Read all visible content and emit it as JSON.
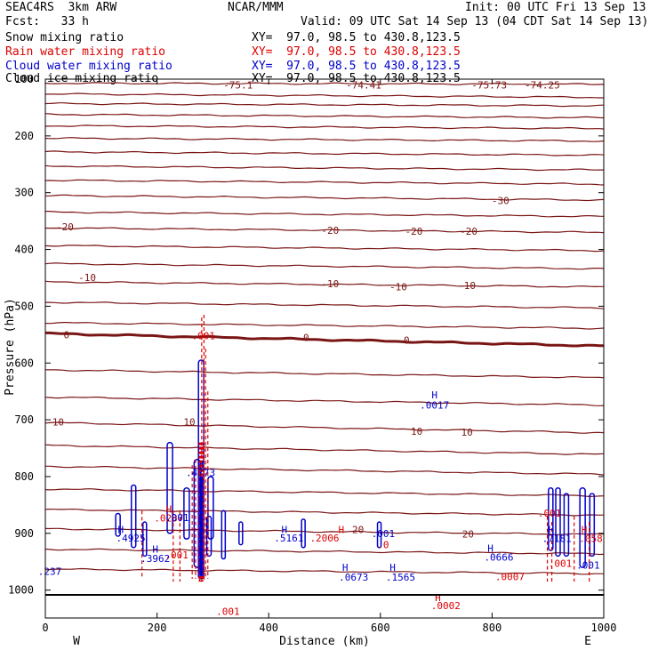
{
  "header": {
    "model": "SEAC4RS  3km ARW",
    "org": "NCAR/MMM",
    "init": "Init: 00 UTC Fri 13 Sep 13",
    "fcst": "Fcst:   33 h",
    "valid": "Valid: 09 UTC Sat 14 Sep 13 (04 CDT Sat 14 Sep 13)"
  },
  "legend": [
    {
      "label": "Snow mixing ratio",
      "xy": "XY=  97.0, 98.5 to 430.8,123.5",
      "color": "#000000"
    },
    {
      "label": "Rain water mixing ratio",
      "xy": "XY=  97.0, 98.5 to 430.8,123.5",
      "color": "#dd0000"
    },
    {
      "label": "Cloud water mixing ratio",
      "xy": "XY=  97.0, 98.5 to 430.8,123.5",
      "color": "#0000cc"
    },
    {
      "label": "Cloud ice mixing ratio",
      "xy": "XY=  97.0, 98.5 to 430.8,123.5",
      "color": "#000000"
    }
  ],
  "chart_data": {
    "type": "cross-section contour",
    "xlabel": "Distance (km)",
    "ylabel": "Pressure (hPa)",
    "xlim": [
      0,
      1000
    ],
    "ylim": [
      100,
      1050
    ],
    "xticks": [
      0,
      200,
      400,
      600,
      800,
      1000
    ],
    "yticks": [
      100,
      200,
      300,
      400,
      500,
      600,
      700,
      800,
      900,
      1000
    ],
    "left_end": "W",
    "right_end": "E",
    "temperature_color": "#7a1515",
    "isotherms": [
      {
        "p": 107,
        "dp": 2
      },
      {
        "p": 126,
        "dp": 6
      },
      {
        "p": 143,
        "dp": 4
      },
      {
        "p": 162,
        "dp": 6
      },
      {
        "p": 182,
        "dp": 5
      },
      {
        "p": 204,
        "dp": 5
      },
      {
        "p": 228,
        "dp": 6
      },
      {
        "p": 253,
        "dp": 7
      },
      {
        "p": 278,
        "dp": 7
      },
      {
        "p": 305,
        "dp": 8
      },
      {
        "p": 334,
        "dp": 8
      },
      {
        "p": 362,
        "dp": 8
      },
      {
        "p": 393,
        "dp": 9
      },
      {
        "p": 425,
        "dp": 9
      },
      {
        "p": 457,
        "dp": 9
      },
      {
        "p": 493,
        "dp": 10
      },
      {
        "p": 529,
        "dp": 10
      },
      {
        "p": 548,
        "dp": 22,
        "bold": true
      },
      {
        "p": 612,
        "dp": 14
      },
      {
        "p": 660,
        "dp": 14
      },
      {
        "p": 705,
        "dp": 18
      },
      {
        "p": 745,
        "dp": 16
      },
      {
        "p": 782,
        "dp": 14
      },
      {
        "p": 822,
        "dp": 12
      },
      {
        "p": 858,
        "dp": 10
      },
      {
        "p": 892,
        "dp": 10
      },
      {
        "p": 928,
        "dp": 8
      },
      {
        "p": 963,
        "dp": 8
      }
    ],
    "isotherm_labels": [
      {
        "text": "-75.1",
        "x": 345,
        "p": 110
      },
      {
        "text": "-74.41",
        "x": 570,
        "p": 110
      },
      {
        "text": "-75.73",
        "x": 795,
        "p": 110
      },
      {
        "text": "-74.25",
        "x": 890,
        "p": 110
      },
      {
        "text": "-30",
        "x": 815,
        "p": 314
      },
      {
        "text": "-20",
        "x": 35,
        "p": 360
      },
      {
        "text": "-20",
        "x": 510,
        "p": 366
      },
      {
        "text": "-20",
        "x": 660,
        "p": 368
      },
      {
        "text": "-20",
        "x": 758,
        "p": 368
      },
      {
        "text": "-10",
        "x": 75,
        "p": 449
      },
      {
        "text": "-10",
        "x": 510,
        "p": 460
      },
      {
        "text": "-10",
        "x": 632,
        "p": 466
      },
      {
        "text": "-10",
        "x": 755,
        "p": 463
      },
      {
        "text": "0",
        "x": 38,
        "p": 550
      },
      {
        "text": "0",
        "x": 467,
        "p": 555
      },
      {
        "text": "0",
        "x": 647,
        "p": 560
      },
      {
        "text": "10",
        "x": 23,
        "p": 704
      },
      {
        "text": "10",
        "x": 258,
        "p": 704
      },
      {
        "text": "10",
        "x": 665,
        "p": 720
      },
      {
        "text": "10",
        "x": 755,
        "p": 722
      },
      {
        "text": "20",
        "x": 560,
        "p": 893
      },
      {
        "text": "20",
        "x": 757,
        "p": 901
      }
    ],
    "rain_color": "#dd0000",
    "cloud_color": "#0000cc",
    "rain_columns": [
      {
        "x": 284,
        "p_top": 515,
        "p_bot": 985
      },
      {
        "x": 280,
        "p_top": 520,
        "p_bot": 985
      },
      {
        "x": 287,
        "p_top": 575,
        "p_bot": 980
      },
      {
        "x": 291,
        "p_top": 650,
        "p_bot": 980
      },
      {
        "x": 269,
        "p_top": 770,
        "p_bot": 980
      },
      {
        "x": 263,
        "p_top": 780,
        "p_bot": 980
      },
      {
        "x": 276,
        "p_top": 780,
        "p_bot": 985
      },
      {
        "x": 229,
        "p_top": 860,
        "p_bot": 985
      },
      {
        "x": 241,
        "p_top": 860,
        "p_bot": 985
      },
      {
        "x": 173,
        "p_top": 860,
        "p_bot": 980
      },
      {
        "x": 899,
        "p_top": 870,
        "p_bot": 985
      },
      {
        "x": 907,
        "p_top": 880,
        "p_bot": 985
      },
      {
        "x": 947,
        "p_top": 870,
        "p_bot": 985
      },
      {
        "x": 974,
        "p_top": 880,
        "p_bot": 985
      }
    ],
    "cloud_contours": [
      {
        "x": 279,
        "p_top": 595,
        "p_bot": 980,
        "w": 6
      },
      {
        "x": 272,
        "p_top": 770,
        "p_bot": 960,
        "w": 7
      },
      {
        "x": 296,
        "p_top": 800,
        "p_bot": 910,
        "w": 6
      },
      {
        "x": 223,
        "p_top": 740,
        "p_bot": 900,
        "w": 6
      },
      {
        "x": 253,
        "p_top": 820,
        "p_bot": 910,
        "w": 6
      },
      {
        "x": 158,
        "p_top": 815,
        "p_bot": 925,
        "w": 5
      },
      {
        "x": 130,
        "p_top": 865,
        "p_bot": 905,
        "w": 5
      },
      {
        "x": 178,
        "p_top": 880,
        "p_bot": 940,
        "w": 4
      },
      {
        "x": 293,
        "p_top": 870,
        "p_bot": 940,
        "w": 5
      },
      {
        "x": 319,
        "p_top": 860,
        "p_bot": 945,
        "w": 4
      },
      {
        "x": 350,
        "p_top": 880,
        "p_bot": 920,
        "w": 4
      },
      {
        "x": 462,
        "p_top": 875,
        "p_bot": 925,
        "w": 4
      },
      {
        "x": 598,
        "p_top": 880,
        "p_bot": 925,
        "w": 4
      },
      {
        "x": 905,
        "p_top": 820,
        "p_bot": 930,
        "w": 5
      },
      {
        "x": 918,
        "p_top": 820,
        "p_bot": 940,
        "w": 5
      },
      {
        "x": 933,
        "p_top": 830,
        "p_bot": 940,
        "w": 5
      },
      {
        "x": 962,
        "p_top": 820,
        "p_bot": 960,
        "w": 6
      },
      {
        "x": 979,
        "p_top": 830,
        "p_bot": 940,
        "w": 5
      }
    ],
    "extrema_labels": [
      {
        "text": ".001",
        "x": 283,
        "p": 552,
        "color": "#dd0000"
      },
      {
        "text": "H",
        "x": 697,
        "p": 656,
        "color": "#0000cc"
      },
      {
        "text": ".0017",
        "x": 697,
        "p": 674,
        "color": "#0000cc"
      },
      {
        "text": "H",
        "x": 278,
        "p": 778,
        "color": "#0000cc"
      },
      {
        "text": ".4773",
        "x": 278,
        "p": 793,
        "color": "#0000cc"
      },
      {
        "text": "H",
        "x": 221,
        "p": 857,
        "color": "#dd0000"
      },
      {
        "text": ".0237",
        "x": 221,
        "p": 873,
        "color": "#dd0000"
      },
      {
        "text": ".001",
        "x": 236,
        "p": 872,
        "color": "#0000cc"
      },
      {
        "text": "H",
        "x": 135,
        "p": 893,
        "color": "#0000cc"
      },
      {
        "text": ".4925",
        "x": 153,
        "p": 908,
        "color": "#0000cc"
      },
      {
        "text": "H",
        "x": 197,
        "p": 928,
        "color": "#0000cc"
      },
      {
        "text": ".3962",
        "x": 197,
        "p": 944,
        "color": "#0000cc"
      },
      {
        "text": ".001",
        "x": 235,
        "p": 938,
        "color": "#dd0000"
      },
      {
        "text": "H",
        "x": 428,
        "p": 893,
        "color": "#0000cc"
      },
      {
        "text": ".5161",
        "x": 436,
        "p": 908,
        "color": "#0000cc"
      },
      {
        "text": "H",
        "x": 530,
        "p": 893,
        "color": "#dd0000"
      },
      {
        "text": ".2006",
        "x": 500,
        "p": 908,
        "color": "#dd0000"
      },
      {
        "text": ".001",
        "x": 605,
        "p": 900,
        "color": "#0000cc"
      },
      {
        "text": ".0",
        "x": 605,
        "p": 920,
        "color": "#dd0000"
      },
      {
        "text": "H",
        "x": 537,
        "p": 960,
        "color": "#0000cc"
      },
      {
        "text": ".0673",
        "x": 552,
        "p": 977,
        "color": "#0000cc"
      },
      {
        "text": "H",
        "x": 622,
        "p": 960,
        "color": "#0000cc"
      },
      {
        "text": ".1565",
        "x": 636,
        "p": 977,
        "color": "#0000cc"
      },
      {
        "text": "H",
        "x": 797,
        "p": 926,
        "color": "#0000cc"
      },
      {
        "text": ".0666",
        "x": 812,
        "p": 942,
        "color": "#0000cc"
      },
      {
        "text": ".0007",
        "x": 832,
        "p": 976,
        "color": "#dd0000"
      },
      {
        "text": "H",
        "x": 703,
        "p": 1013,
        "color": "#dd0000"
      },
      {
        "text": ".0002",
        "x": 717,
        "p": 1027,
        "color": "#dd0000"
      },
      {
        "text": ".237",
        "x": 8,
        "p": 967,
        "color": "#0000cc"
      },
      {
        "text": ".001",
        "x": 327,
        "p": 1037,
        "color": "#dd0000"
      },
      {
        "text": ".001",
        "x": 903,
        "p": 864,
        "color": "#dd0000"
      },
      {
        "text": "H",
        "x": 906,
        "p": 893,
        "color": "#0000cc"
      },
      {
        "text": ".7181",
        "x": 916,
        "p": 909,
        "color": "#0000cc"
      },
      {
        "text": "H",
        "x": 965,
        "p": 893,
        "color": "#dd0000"
      },
      {
        "text": ".058",
        "x": 977,
        "p": 909,
        "color": "#dd0000"
      },
      {
        "text": ".001",
        "x": 922,
        "p": 953,
        "color": "#dd0000"
      },
      {
        "text": ".001",
        "x": 972,
        "p": 956,
        "color": "#0000cc"
      }
    ]
  }
}
